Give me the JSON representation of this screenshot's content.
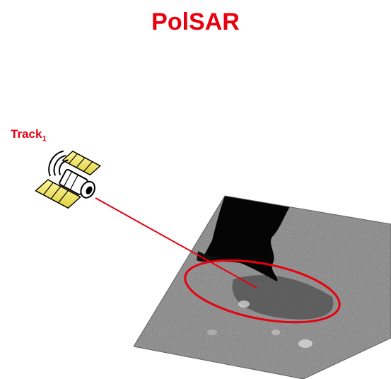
{
  "title": "PolSAR",
  "track": {
    "label": "Track",
    "index": "1"
  },
  "icons": {
    "satellite": "satellite-icon"
  },
  "colors": {
    "accent": "#e8000f",
    "ellipse": "#e8000f",
    "ray": "#e8000f"
  }
}
